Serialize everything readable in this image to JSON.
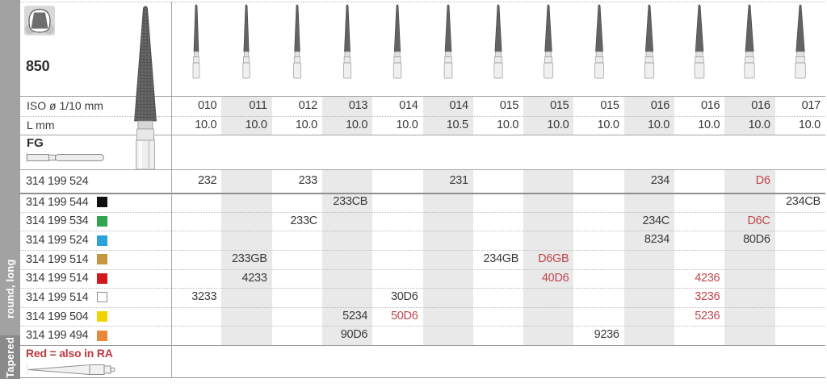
{
  "sidebar": {
    "group_label": "Tapered",
    "shape_label": "round, long"
  },
  "panel": {
    "product_number": "850",
    "iso_label": "ISO ø 1/10 mm",
    "length_label": "L mm",
    "shank_label": "FG",
    "ra_note": "Red = also in RA"
  },
  "icons": {
    "tooth": "tooth-icon",
    "fg_shank": "fg-shank-icon",
    "ra_shank": "ra-shank-icon",
    "bur": "bur-illustration"
  },
  "table": {
    "column_count": 13,
    "iso_values": [
      "010",
      "011",
      "012",
      "013",
      "014",
      "014",
      "015",
      "015",
      "015",
      "016",
      "016",
      "016",
      "017"
    ],
    "length_values": [
      "10.0",
      "10.0",
      "10.0",
      "10.0",
      "10.0",
      "10.5",
      "10.0",
      "10.0",
      "10.0",
      "10.0",
      "10.0",
      "10.0",
      "10.0"
    ],
    "rows": [
      {
        "code": "314 199 524",
        "swatch": null,
        "cells": {
          "1": "232",
          "3": "233",
          "6": "231",
          "10": "234",
          "12": "D6"
        },
        "red_cells": [
          12
        ]
      },
      {
        "code": "314 199 544",
        "swatch": "#111111",
        "cells": {
          "4": "233CB",
          "13": "234CB"
        },
        "red_cells": []
      },
      {
        "code": "314 199 534",
        "swatch": "#2FA64D",
        "cells": {
          "3": "233C",
          "10": "234C",
          "12": "D6C"
        },
        "red_cells": [
          12
        ]
      },
      {
        "code": "314 199 524",
        "swatch": "#2BA2DC",
        "cells": {
          "10": "8234",
          "12": "80D6"
        },
        "red_cells": []
      },
      {
        "code": "314 199 514",
        "swatch": "#C8963E",
        "cells": {
          "2": "233GB",
          "7": "234GB",
          "8": "D6GB"
        },
        "red_cells": [
          8
        ]
      },
      {
        "code": "314 199 514",
        "swatch": "#D2181B",
        "cells": {
          "2": "4233",
          "8": "40D6",
          "11": "4236"
        },
        "red_cells": [
          8,
          11
        ]
      },
      {
        "code": "314 199 514",
        "swatch": "#FFFFFF",
        "cells": {
          "1": "3233",
          "5": "30D6",
          "11": "3236"
        },
        "red_cells": [
          11
        ]
      },
      {
        "code": "314 199 504",
        "swatch": "#F2D500",
        "cells": {
          "4": "5234",
          "5": "50D6",
          "11": "5236"
        },
        "red_cells": [
          5,
          11
        ]
      },
      {
        "code": "314 199 494",
        "swatch": "#E8883B",
        "cells": {
          "4": "90D6",
          "9": "9236"
        },
        "red_cells": []
      }
    ]
  },
  "colors": {
    "red_text": "#BE464E",
    "note_red": "#BE3A42",
    "shaded_column": "#E9E9E9",
    "strip_gray": "#A2A2A2",
    "strip_dark_gray": "#8A8A8A"
  }
}
